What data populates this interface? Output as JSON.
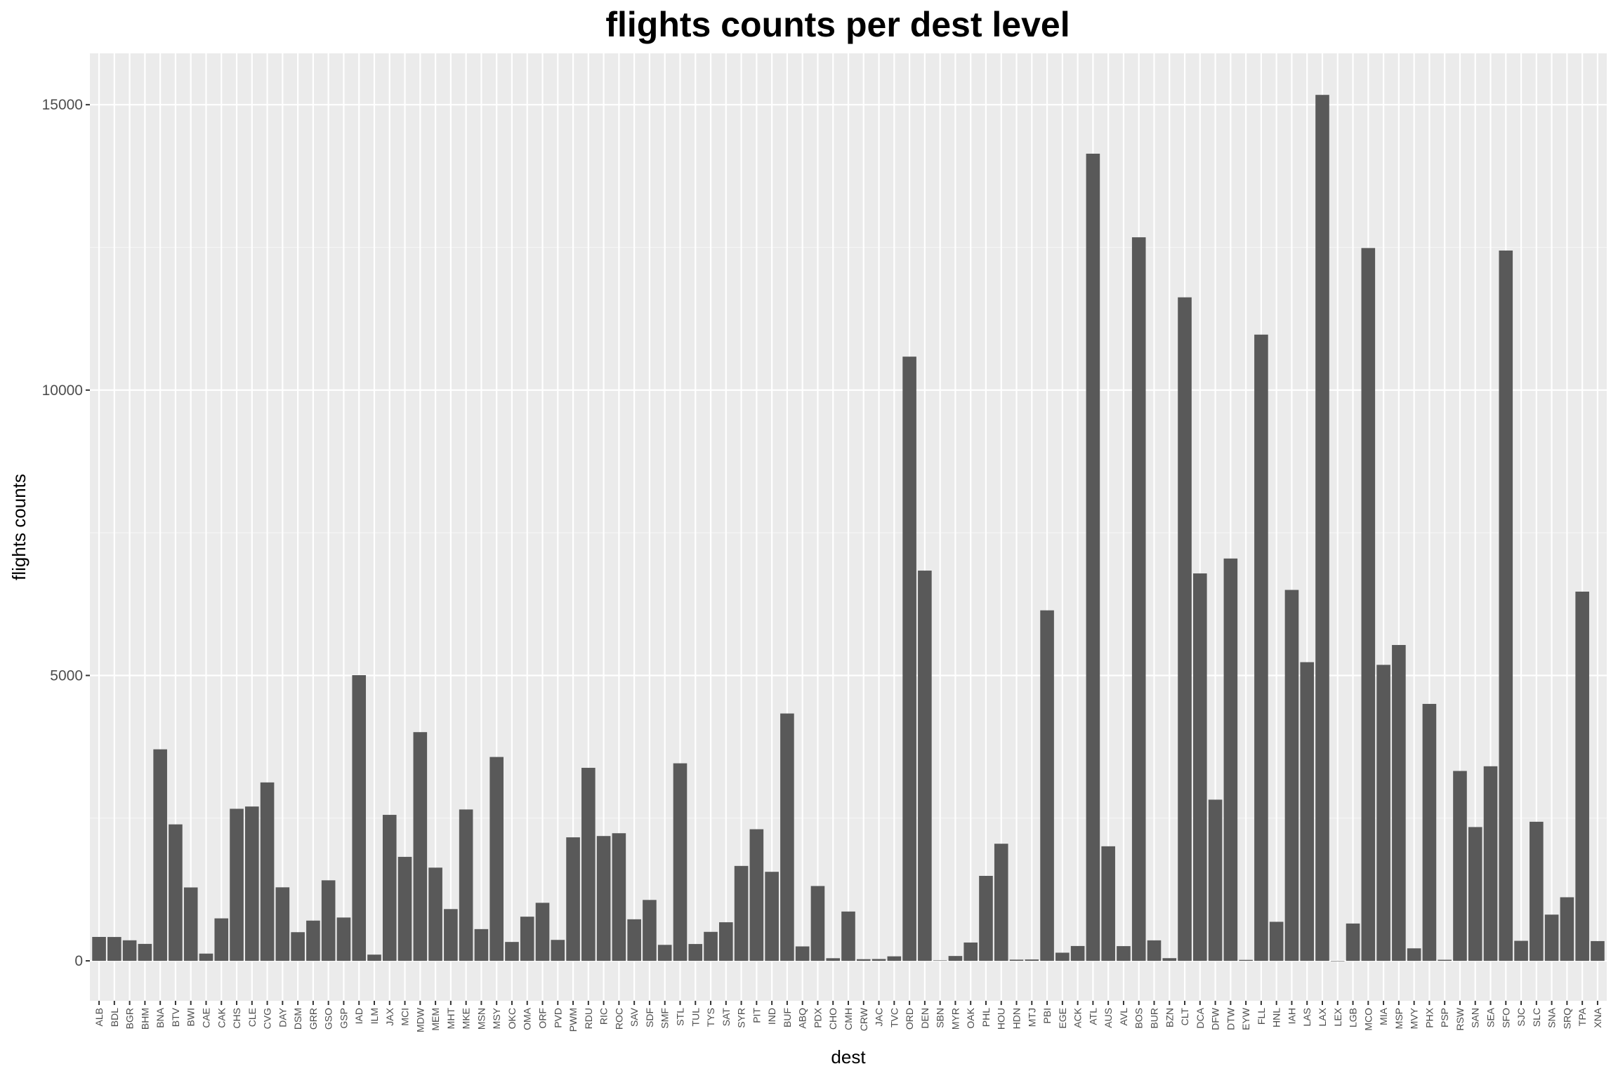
{
  "chart_data": {
    "type": "bar",
    "title": "flights counts per dest level",
    "xlabel": "dest",
    "ylabel": "flights counts",
    "ylim": [
      -700,
      15900
    ],
    "yticks": [
      0,
      5000,
      10000,
      15000
    ],
    "grid": true,
    "legend": "none",
    "colors": {
      "bar": "#595959",
      "panel": "#ebebeb",
      "grid_major": "#ffffff",
      "grid_minor": "#f5f5f5",
      "tick_text": "#4d4d4d"
    },
    "categories": [
      "ALB",
      "BDL",
      "BGR",
      "BHM",
      "BNA",
      "BTV",
      "BWI",
      "CAE",
      "CAK",
      "CHS",
      "CLE",
      "CVG",
      "DAY",
      "DSM",
      "GRR",
      "GSO",
      "GSP",
      "IAD",
      "ILM",
      "JAX",
      "MCI",
      "MDW",
      "MEM",
      "MHT",
      "MKE",
      "MSN",
      "MSY",
      "OKC",
      "OMA",
      "ORF",
      "PVD",
      "PWM",
      "RDU",
      "RIC",
      "ROC",
      "SAV",
      "SDF",
      "SMF",
      "STL",
      "TUL",
      "TYS",
      "SAT",
      "SYR",
      "PIT",
      "IND",
      "BUF",
      "ABQ",
      "PDX",
      "CHO",
      "CMH",
      "CRW",
      "JAC",
      "TVC",
      "ORD",
      "DEN",
      "SBN",
      "MYR",
      "OAK",
      "PHL",
      "HOU",
      "HDN",
      "MTJ",
      "PBI",
      "EGE",
      "ACK",
      "ATL",
      "AUS",
      "AVL",
      "BOS",
      "BUR",
      "BZN",
      "CLT",
      "DCA",
      "DFW",
      "DTW",
      "EYW",
      "FLL",
      "HNL",
      "IAH",
      "LAS",
      "LAX",
      "LEX",
      "LGB",
      "MCO",
      "MIA",
      "MSP",
      "MVY",
      "PHX",
      "PSP",
      "RSW",
      "SAN",
      "SEA",
      "SFO",
      "SJC",
      "SLC",
      "SNA",
      "SRQ",
      "TPA",
      "XNA"
    ],
    "values": [
      419,
      418,
      360,
      297,
      3706,
      2391,
      1286,
      127,
      744,
      2664,
      2704,
      3126,
      1288,
      502,
      705,
      1411,
      759,
      5005,
      109,
      2558,
      1822,
      4007,
      1633,
      907,
      2652,
      556,
      3572,
      331,
      774,
      1017,
      367,
      2164,
      3382,
      2187,
      2236,
      728,
      1067,
      280,
      3461,
      295,
      508,
      676,
      1663,
      2306,
      1560,
      4334,
      253,
      1311,
      46,
      864,
      29,
      32,
      79,
      10586,
      6837,
      8,
      85,
      321,
      1489,
      2052,
      21,
      24,
      6141,
      143,
      260,
      14142,
      2007,
      258,
      12677,
      359,
      47,
      11625,
      6788,
      2824,
      7049,
      17,
      10972,
      684,
      6499,
      5233,
      15172,
      1,
      654,
      12489,
      5186,
      5534,
      219,
      4502,
      19,
      3327,
      2344,
      3409,
      12445,
      351,
      2437,
      810,
      1114,
      6469,
      346
    ]
  }
}
